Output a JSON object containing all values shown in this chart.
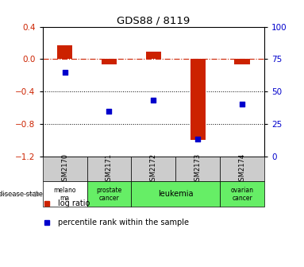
{
  "title": "GDS88 / 8119",
  "samples": [
    "GSM2170",
    "GSM2171",
    "GSM2172",
    "GSM2173",
    "GSM2174"
  ],
  "log_ratio": [
    0.17,
    -0.07,
    0.09,
    -1.0,
    -0.07
  ],
  "percentile_rank": [
    65,
    35,
    43,
    13,
    40
  ],
  "ylim_left": [
    -1.2,
    0.4
  ],
  "ylim_right": [
    0,
    100
  ],
  "yticks_left": [
    0.4,
    0,
    -0.4,
    -0.8,
    -1.2
  ],
  "yticks_right": [
    100,
    75,
    50,
    25,
    0
  ],
  "bar_color": "#cc2200",
  "scatter_color": "#0000cc",
  "dotted_lines": [
    -0.4,
    -0.8
  ],
  "disease_groups": [
    {
      "label": "melano\nma",
      "indices": [
        0
      ],
      "color": "#ffffff"
    },
    {
      "label": "prostate\ncancer",
      "indices": [
        1
      ],
      "color": "#66ee66"
    },
    {
      "label": "leukemia",
      "indices": [
        2,
        3
      ],
      "color": "#66ee66"
    },
    {
      "label": "ovarian\ncancer",
      "indices": [
        4
      ],
      "color": "#66ee66"
    }
  ],
  "sample_box_color": "#cccccc",
  "legend_log_ratio_color": "#cc2200",
  "legend_percentile_color": "#0000cc",
  "background_color": "#ffffff"
}
